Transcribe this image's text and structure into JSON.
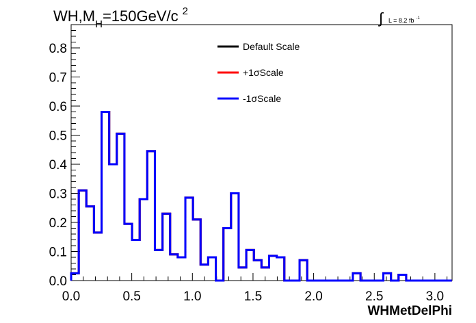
{
  "title": {
    "main": "WH,M",
    "sub": "H",
    "rest": "=150GeV/c",
    "sup": "2"
  },
  "lumi": {
    "symbol": "∫",
    "text": "L = 8.2 fb",
    "sup": "-1"
  },
  "chart_data": {
    "type": "line",
    "style": "step-histogram",
    "xlabel": "WHMetDelPhi",
    "ylabel": "",
    "xlim": [
      0,
      3.1416
    ],
    "ylim": [
      0,
      0.88
    ],
    "x_ticks": [
      "0.0",
      "0.5",
      "1.0",
      "1.5",
      "2.0",
      "2.5",
      "3.0"
    ],
    "y_ticks": [
      "0.0",
      "0.1",
      "0.2",
      "0.3",
      "0.4",
      "0.5",
      "0.6",
      "0.7",
      "0.8"
    ],
    "bin_edges_start": 0,
    "bin_width": 0.0628,
    "legend": {
      "placement": "top-center",
      "entries": [
        {
          "label": "Default Scale",
          "color": "#000000"
        },
        {
          "label": "+1σScale",
          "color": "#ff0000"
        },
        {
          "label": "-1σScale",
          "color": "#0000ff"
        }
      ]
    },
    "series": [
      {
        "name": "Default Scale",
        "color": "#000000",
        "values": [
          0.025,
          0.31,
          0.255,
          0.165,
          0.58,
          0.4,
          0.505,
          0.195,
          0.14,
          0.28,
          0.445,
          0.105,
          0.23,
          0.09,
          0.08,
          0.285,
          0.21,
          0.055,
          0.08,
          0.0,
          0.18,
          0.3,
          0.045,
          0.105,
          0.07,
          0.045,
          0.085,
          0.08,
          0.0,
          0.0,
          0.07,
          0.0,
          0.0,
          0.0,
          0.0,
          0.0,
          0.0,
          0.025,
          0.0,
          0.0,
          0.0,
          0.025,
          0.0,
          0.02,
          0.0,
          0.0,
          0.0,
          0.0,
          0.0,
          0.0
        ]
      },
      {
        "name": "+1σScale",
        "color": "#ff0000",
        "values": [
          0.025,
          0.31,
          0.255,
          0.165,
          0.58,
          0.4,
          0.505,
          0.195,
          0.14,
          0.28,
          0.445,
          0.105,
          0.23,
          0.09,
          0.08,
          0.285,
          0.21,
          0.055,
          0.08,
          0.0,
          0.18,
          0.3,
          0.045,
          0.105,
          0.07,
          0.045,
          0.085,
          0.08,
          0.0,
          0.0,
          0.07,
          0.0,
          0.0,
          0.0,
          0.0,
          0.0,
          0.0,
          0.025,
          0.0,
          0.0,
          0.0,
          0.025,
          0.0,
          0.02,
          0.0,
          0.0,
          0.0,
          0.0,
          0.0,
          0.0
        ]
      },
      {
        "name": "-1σScale",
        "color": "#0000ff",
        "values": [
          0.025,
          0.31,
          0.255,
          0.165,
          0.58,
          0.4,
          0.505,
          0.195,
          0.14,
          0.28,
          0.445,
          0.105,
          0.23,
          0.09,
          0.08,
          0.285,
          0.21,
          0.055,
          0.08,
          0.0,
          0.18,
          0.3,
          0.045,
          0.105,
          0.07,
          0.045,
          0.085,
          0.08,
          0.0,
          0.0,
          0.07,
          0.0,
          0.0,
          0.0,
          0.0,
          0.0,
          0.0,
          0.025,
          0.0,
          0.0,
          0.0,
          0.025,
          0.0,
          0.02,
          0.0,
          0.0,
          0.0,
          0.0,
          0.0,
          0.0
        ]
      }
    ]
  }
}
